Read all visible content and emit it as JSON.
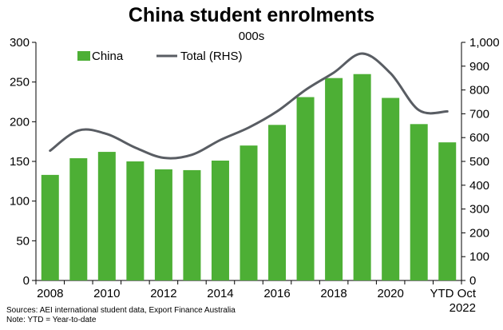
{
  "chart_data": {
    "type": "bar+line",
    "title": "China student enrolments",
    "subtitle": "000s",
    "categories": [
      "2008",
      "2009",
      "2010",
      "2011",
      "2012",
      "2013",
      "2014",
      "2015",
      "2016",
      "2017",
      "2018",
      "2019",
      "2020",
      "2021",
      "YTD Oct 2022"
    ],
    "x_tick_labels": [
      "2008",
      "",
      "2010",
      "",
      "2012",
      "",
      "2014",
      "",
      "2016",
      "",
      "2018",
      "",
      "2020",
      "",
      "YTD Oct|2022"
    ],
    "series": [
      {
        "name": "China",
        "type": "bar",
        "axis": "left",
        "color": "#4daf35",
        "values": [
          133,
          154,
          162,
          150,
          140,
          139,
          151,
          170,
          196,
          231,
          255,
          260,
          230,
          197,
          174
        ]
      },
      {
        "name": "Total (RHS)",
        "type": "line",
        "axis": "right",
        "color": "#595d63",
        "values": [
          545,
          630,
          615,
          558,
          515,
          528,
          590,
          642,
          710,
          800,
          873,
          953,
          870,
          715,
          710
        ]
      }
    ],
    "ylim_left": [
      0,
      300
    ],
    "yticks_left": [
      0,
      50,
      100,
      150,
      200,
      250,
      300
    ],
    "ylim_right": [
      0,
      1000
    ],
    "yticks_right": [
      "0",
      "100",
      "200",
      "300",
      "400",
      "500",
      "600",
      "700",
      "800",
      "900",
      "1,000"
    ],
    "grid": false,
    "legend": "top-left"
  },
  "notes": {
    "source": "Sources: AEI international student data, Export Finance Australia",
    "note": "Note: YTD = Year-to-date"
  }
}
